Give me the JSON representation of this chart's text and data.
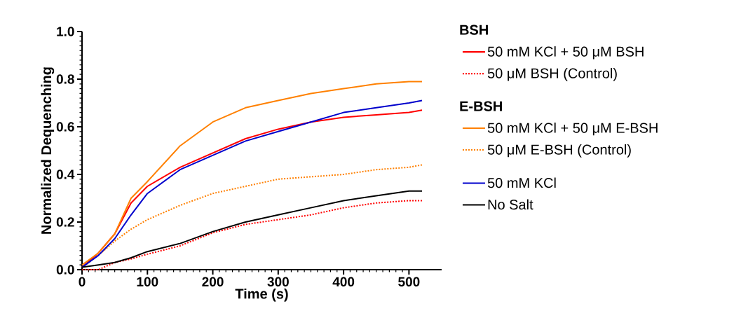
{
  "chart_data": {
    "type": "line",
    "xlabel": "Time (s)",
    "ylabel": "Normalized Dequenching",
    "x": [
      0,
      25,
      50,
      75,
      100,
      150,
      200,
      250,
      300,
      350,
      400,
      450,
      500,
      520
    ],
    "series": [
      {
        "name": "50 mM KCl + 50 μM BSH",
        "color": "#ff0000",
        "line_style": "solid",
        "values": [
          0.01,
          0.07,
          0.15,
          0.28,
          0.35,
          0.43,
          0.49,
          0.55,
          0.59,
          0.62,
          0.64,
          0.65,
          0.66,
          0.67
        ]
      },
      {
        "name": "50 μM BSH (Control)",
        "color": "#ff0000",
        "line_style": "dotted",
        "values": [
          0.0,
          0.0,
          0.03,
          0.045,
          0.065,
          0.1,
          0.155,
          0.19,
          0.21,
          0.23,
          0.26,
          0.28,
          0.29,
          0.29
        ]
      },
      {
        "name": "50 mM KCl + 50 μM E-BSH",
        "color": "#ff8000",
        "line_style": "solid",
        "values": [
          0.02,
          0.07,
          0.15,
          0.3,
          0.37,
          0.52,
          0.62,
          0.68,
          0.71,
          0.74,
          0.76,
          0.78,
          0.79,
          0.79
        ]
      },
      {
        "name": "50 μM E-BSH (Control)",
        "color": "#ff8000",
        "line_style": "dotted",
        "values": [
          0.01,
          0.06,
          0.12,
          0.17,
          0.21,
          0.27,
          0.32,
          0.35,
          0.38,
          0.39,
          0.4,
          0.42,
          0.43,
          0.44
        ]
      },
      {
        "name": "50 mM KCl",
        "color": "#0000cc",
        "line_style": "solid",
        "values": [
          0.01,
          0.06,
          0.13,
          0.23,
          0.32,
          0.42,
          0.48,
          0.54,
          0.58,
          0.62,
          0.66,
          0.68,
          0.7,
          0.71
        ]
      },
      {
        "name": "No Salt",
        "color": "#000000",
        "line_style": "solid",
        "values": [
          0.01,
          0.02,
          0.03,
          0.05,
          0.076,
          0.11,
          0.16,
          0.2,
          0.23,
          0.26,
          0.29,
          0.31,
          0.33,
          0.33
        ]
      }
    ],
    "annotations": [
      "BSH",
      "E-BSH"
    ],
    "xlim": [
      0,
      550
    ],
    "xticks": [
      0,
      100,
      200,
      300,
      400,
      500
    ],
    "ylim": [
      0,
      1.0
    ],
    "yticks": [
      {
        "value": 0,
        "label": "0.0"
      },
      {
        "value": 0.2,
        "label": "0.2"
      },
      {
        "value": 0.4,
        "label": "0.4"
      },
      {
        "value": 0.6,
        "label": "0.6"
      },
      {
        "value": 0.8,
        "label": "0.8"
      },
      {
        "value": 1.0,
        "label": "1.0"
      }
    ],
    "grid": false,
    "legend": "right",
    "marker": "none"
  }
}
